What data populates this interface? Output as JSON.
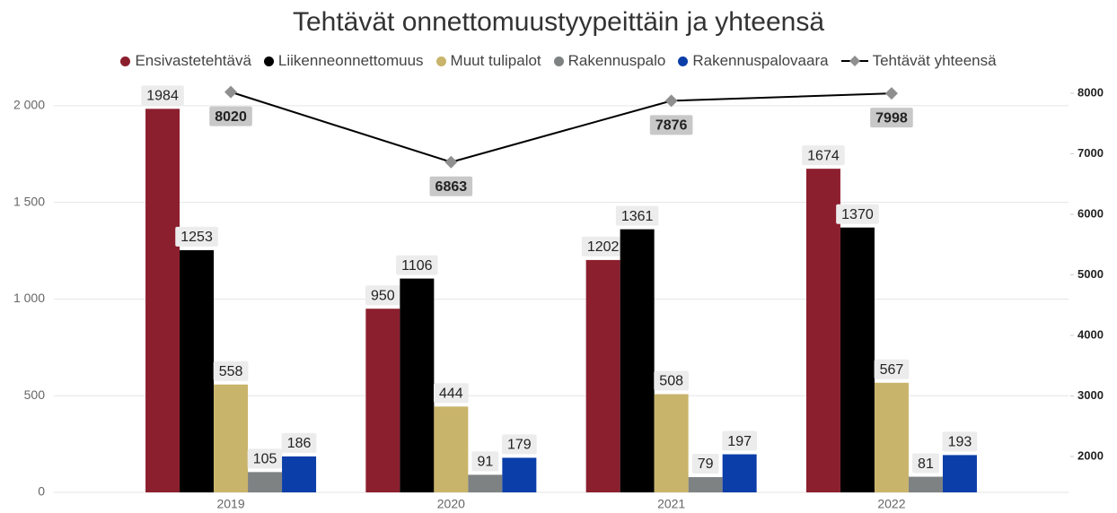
{
  "chart_data": {
    "type": "bar",
    "title": "Tehtävät onnettomuustyypeittäin ja yhteensä",
    "categories": [
      "2019",
      "2020",
      "2021",
      "2022"
    ],
    "series": [
      {
        "name": "Ensivastetehtävä",
        "color": "#8c1f2e",
        "values": [
          1984,
          950,
          1202,
          1674
        ]
      },
      {
        "name": "Liikenneonnettomuus",
        "color": "#000000",
        "values": [
          1253,
          1106,
          1361,
          1370
        ]
      },
      {
        "name": "Muut tulipalot",
        "color": "#c9b46b",
        "values": [
          558,
          444,
          508,
          567
        ]
      },
      {
        "name": "Rakennuspalo",
        "color": "#7f8283",
        "values": [
          105,
          91,
          79,
          81
        ]
      },
      {
        "name": "Rakennuspalovaara",
        "color": "#0b3ea8",
        "values": [
          186,
          179,
          197,
          193
        ]
      },
      {
        "name": "Tehtävät yhteensä",
        "type": "line",
        "axis": "y2",
        "color": "#000000",
        "marker_color": "#8f8f8f",
        "values": [
          8020,
          6863,
          7876,
          7998
        ]
      }
    ],
    "ylim": [
      0,
      2083
    ],
    "yticks": [
      0,
      500,
      {
        "value": 1000,
        "label": "1 000"
      },
      {
        "value": 1500,
        "label": "1 500"
      },
      {
        "value": 2000,
        "label": "2 000"
      }
    ],
    "y2lim": [
      1407,
      8059
    ],
    "y2ticks": [
      2000,
      3000,
      4000,
      5000,
      6000,
      7000,
      8000
    ],
    "grid": true
  }
}
